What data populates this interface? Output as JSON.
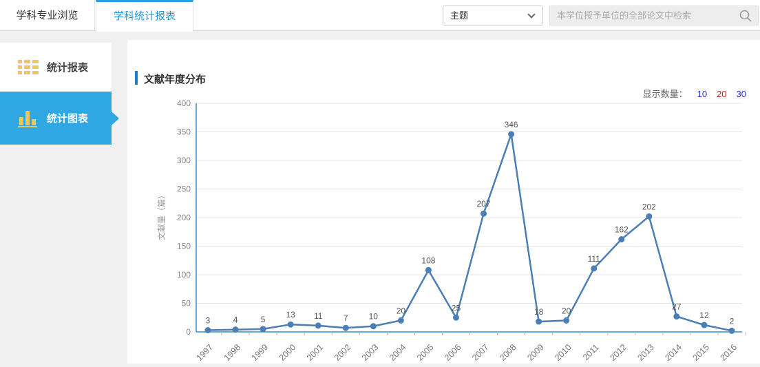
{
  "header": {
    "tabs": [
      {
        "label": "学科专业浏览",
        "active": false
      },
      {
        "label": "学科统计报表",
        "active": true
      }
    ],
    "search_type_select": {
      "value": "主题"
    },
    "search": {
      "placeholder": "本学位授予单位的全部论文中检索",
      "value": ""
    }
  },
  "sidebar": {
    "items": [
      {
        "label": "统计报表",
        "icon": "table-grid-icon",
        "active": false
      },
      {
        "label": "统计图表",
        "icon": "bar-chart-icon",
        "active": true
      }
    ]
  },
  "main": {
    "section_title": "文献年度分布",
    "display_count": {
      "label": "显示数量：",
      "options": [
        {
          "label": "10",
          "color": "#2533c8",
          "selected": false
        },
        {
          "label": "20",
          "color": "#c42b2b",
          "selected": true
        },
        {
          "label": "30",
          "color": "#2b2bb2",
          "selected": false
        }
      ]
    }
  },
  "chart_data": {
    "type": "line",
    "title": "文献年度分布",
    "categories": [
      "1997",
      "1998",
      "1999",
      "2000",
      "2001",
      "2002",
      "2003",
      "2004",
      "2005",
      "2006",
      "2007",
      "2008",
      "2009",
      "2010",
      "2011",
      "2012",
      "2013",
      "2014",
      "2015",
      "2016"
    ],
    "values": [
      3,
      4,
      5,
      13,
      11,
      7,
      10,
      20,
      108,
      25,
      207,
      346,
      18,
      20,
      111,
      162,
      202,
      27,
      12,
      2
    ],
    "xlabel": "",
    "ylabel": "文献量（篇）",
    "ylim": [
      0,
      400
    ],
    "ytick_step": 50,
    "grid": true,
    "legend": "none",
    "line_color": "#4a7eb5",
    "marker_color": "#4a7eb5",
    "axis_color": "#2b8fce",
    "grid_color": "#e4e4e4",
    "tick_label_color": "#888",
    "data_label_color": "#555"
  },
  "colors": {
    "sidebar_active_blue": "#2ea7e3",
    "tab_active_blue": "#2596d1",
    "icon_yellow": "#f0c75f",
    "title_accent": "#1b7fc4"
  }
}
